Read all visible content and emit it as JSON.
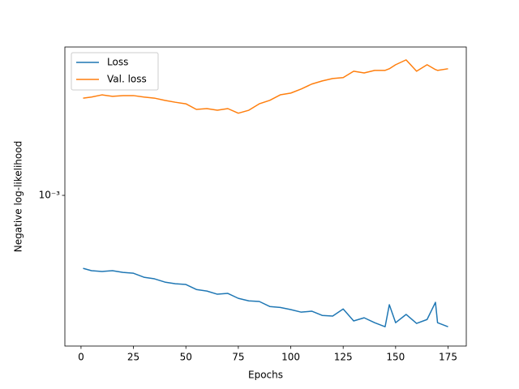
{
  "chart_data": {
    "type": "line",
    "xlabel": "Epochs",
    "ylabel": "Negative log-likelihood",
    "x": [
      1,
      5,
      10,
      15,
      20,
      25,
      30,
      35,
      40,
      45,
      50,
      55,
      60,
      65,
      70,
      75,
      80,
      85,
      90,
      95,
      100,
      105,
      110,
      115,
      120,
      125,
      130,
      135,
      140,
      145,
      147,
      150,
      155,
      160,
      165,
      169,
      170,
      175
    ],
    "series": [
      {
        "name": "Loss",
        "color": "#1f77b4",
        "values": [
          0.000477,
          0.000466,
          0.000462,
          0.000466,
          0.000458,
          0.000454,
          0.000436,
          0.000429,
          0.000415,
          0.000408,
          0.000405,
          0.000385,
          0.000379,
          0.000367,
          0.00037,
          0.000352,
          0.000343,
          0.000341,
          0.000324,
          0.000321,
          0.000314,
          0.000306,
          0.000309,
          0.000296,
          0.000294,
          0.000316,
          0.00028,
          0.000289,
          0.000275,
          0.000264,
          0.00033,
          0.000275,
          0.000299,
          0.000273,
          0.000284,
          0.000338,
          0.000275,
          0.000264
        ]
      },
      {
        "name": "Val. loss",
        "color": "#ff7f0e",
        "values": [
          0.00268,
          0.00271,
          0.00277,
          0.00273,
          0.00275,
          0.00275,
          0.00271,
          0.00268,
          0.00262,
          0.00257,
          0.00253,
          0.00239,
          0.00241,
          0.00237,
          0.00241,
          0.0023,
          0.00237,
          0.00253,
          0.00262,
          0.00277,
          0.00282,
          0.00294,
          0.00309,
          0.00319,
          0.00327,
          0.0033,
          0.00352,
          0.00346,
          0.00355,
          0.00355,
          0.00361,
          0.00376,
          0.00395,
          0.00352,
          0.00376,
          0.00358,
          0.00355,
          0.00361
        ]
      }
    ],
    "xlim": [
      -7.7,
      183.7
    ],
    "xticks": [
      0,
      25,
      50,
      75,
      100,
      125,
      150,
      175
    ],
    "ylim": [
      0.000217,
      0.0045
    ],
    "yticks": [
      {
        "value": 0.001,
        "label": "10⁻³"
      }
    ],
    "yscale": "log",
    "grid": false,
    "legend": "upper left"
  }
}
